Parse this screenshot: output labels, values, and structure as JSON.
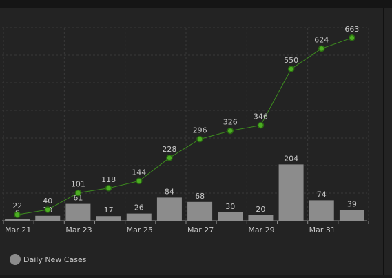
{
  "chart_data": {
    "type": "combo",
    "categories": [
      "Mar 21",
      null,
      "Mar 23",
      null,
      "Mar 25",
      null,
      "Mar 27",
      null,
      "Mar 29",
      null,
      "Mar 31",
      null
    ],
    "series": [
      {
        "name": "Daily New Cases",
        "type": "bar",
        "color": "#8c8c8c",
        "values": [
          6,
          18,
          61,
          17,
          26,
          84,
          68,
          30,
          20,
          204,
          74,
          39
        ]
      },
      {
        "type": "line",
        "color": "#3d8c1f",
        "values": [
          22,
          40,
          101,
          118,
          144,
          228,
          296,
          326,
          346,
          550,
          624,
          663
        ]
      }
    ],
    "ylim": [
      0,
      700
    ],
    "yticks": [
      0,
      100,
      200,
      300,
      400,
      500,
      600,
      700
    ],
    "grid": true,
    "legend": "bottom-left"
  }
}
